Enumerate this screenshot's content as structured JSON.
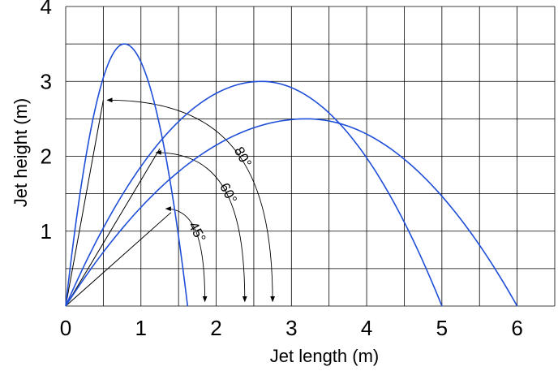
{
  "chart_data": {
    "type": "line",
    "xlabel": "Jet length (m)",
    "ylabel": "Jet height (m)",
    "xlim": [
      0,
      6.5
    ],
    "ylim": [
      0,
      4
    ],
    "x_ticks": [
      "0",
      "1",
      "2",
      "3",
      "4",
      "5",
      "6"
    ],
    "y_ticks": [
      "1",
      "2",
      "3",
      "4"
    ],
    "grid": true,
    "grid_step": 0.5,
    "line_color": "#1f4fd8",
    "series": [
      {
        "angle_deg": 80,
        "range": 1.62,
        "apex": [
          0.78,
          3.5
        ]
      },
      {
        "angle_deg": 60,
        "range": 5.0,
        "apex": [
          2.6,
          3.0
        ]
      },
      {
        "angle_deg": 45,
        "range": 6.0,
        "apex": [
          3.2,
          2.5
        ]
      }
    ],
    "launch_lines": [
      {
        "to": [
          0.5,
          2.75
        ]
      },
      {
        "to": [
          1.25,
          2.1
        ]
      },
      {
        "to": [
          1.4,
          1.25
        ]
      }
    ],
    "angle_arcs": [
      {
        "label": "80°",
        "start": [
          0.55,
          2.75
        ],
        "end": [
          2.75,
          0.06
        ]
      },
      {
        "label": "60°",
        "start": [
          1.2,
          2.05
        ],
        "end": [
          2.38,
          0.06
        ]
      },
      {
        "label": "45°",
        "start": [
          1.33,
          1.3
        ],
        "end": [
          1.85,
          0.06
        ]
      }
    ]
  }
}
